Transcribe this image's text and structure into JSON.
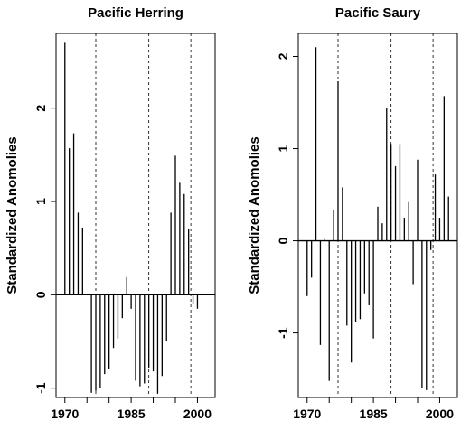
{
  "chart_data": [
    {
      "type": "bar",
      "title": "Pacific Herring",
      "xlabel": "",
      "ylabel": "Standardized Anomolies",
      "xlim": [
        1968,
        2004
      ],
      "ylim": [
        -1.1,
        2.8
      ],
      "xticks": [
        1970,
        1985,
        2000
      ],
      "yticks": [
        -1,
        0,
        1,
        2
      ],
      "regime_shift_years": [
        1977,
        1989,
        1998.5
      ],
      "x": [
        1970,
        1971,
        1972,
        1973,
        1974,
        1975,
        1976,
        1977,
        1978,
        1979,
        1980,
        1981,
        1982,
        1983,
        1984,
        1985,
        1986,
        1987,
        1988,
        1989,
        1990,
        1991,
        1992,
        1993,
        1994,
        1995,
        1996,
        1997,
        1998,
        1999,
        2000
      ],
      "values": [
        2.7,
        1.57,
        1.73,
        0.88,
        0.72,
        0,
        -1.05,
        -1.03,
        -1.0,
        -0.85,
        -0.8,
        -0.57,
        -0.47,
        -0.25,
        0.19,
        -0.15,
        -0.92,
        -0.98,
        -0.95,
        -0.78,
        -0.82,
        -1.06,
        -0.87,
        -0.5,
        0.88,
        1.49,
        1.2,
        1.08,
        0.7,
        -0.1,
        -0.15
      ]
    },
    {
      "type": "bar",
      "title": "Pacific Saury",
      "xlabel": "",
      "ylabel": "Standardized Anomolies",
      "xlim": [
        1968,
        2004
      ],
      "ylim": [
        -1.7,
        2.25
      ],
      "xticks": [
        1970,
        1985,
        2000
      ],
      "yticks": [
        -1,
        0,
        1,
        2
      ],
      "regime_shift_years": [
        1977,
        1989,
        1998.5
      ],
      "x": [
        1970,
        1971,
        1972,
        1973,
        1974,
        1975,
        1976,
        1977,
        1978,
        1979,
        1980,
        1981,
        1982,
        1983,
        1984,
        1985,
        1986,
        1987,
        1988,
        1989,
        1990,
        1991,
        1992,
        1993,
        1994,
        1995,
        1996,
        1997,
        1998,
        1999,
        2000,
        2001,
        2002,
        2003
      ],
      "values": [
        -0.6,
        -0.4,
        2.1,
        -1.13,
        0.02,
        -1.52,
        0.33,
        1.73,
        0.58,
        -0.92,
        -1.32,
        -0.88,
        -0.85,
        -0.57,
        -0.7,
        -1.06,
        0.37,
        0.19,
        1.44,
        1.05,
        0.81,
        1.05,
        0.25,
        0.42,
        -0.47,
        0.88,
        -1.6,
        -1.62,
        -0.1,
        0.72,
        0.25,
        1.57,
        0.48,
        0
      ]
    }
  ]
}
